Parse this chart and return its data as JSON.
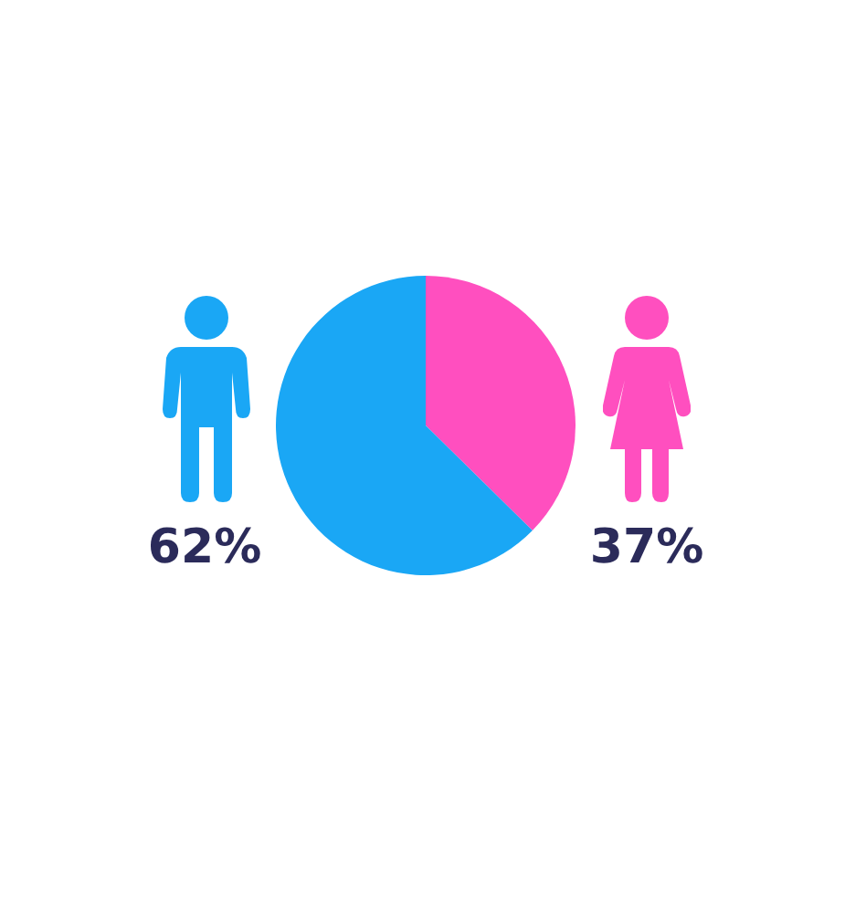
{
  "chart_data": {
    "type": "pie",
    "categories": [
      null,
      null
    ],
    "values": [
      37,
      62
    ],
    "colors": [
      "#ff4fbf",
      "#1aa7f5"
    ],
    "value_labels": [
      "37%",
      "62%"
    ],
    "legend": false
  }
}
